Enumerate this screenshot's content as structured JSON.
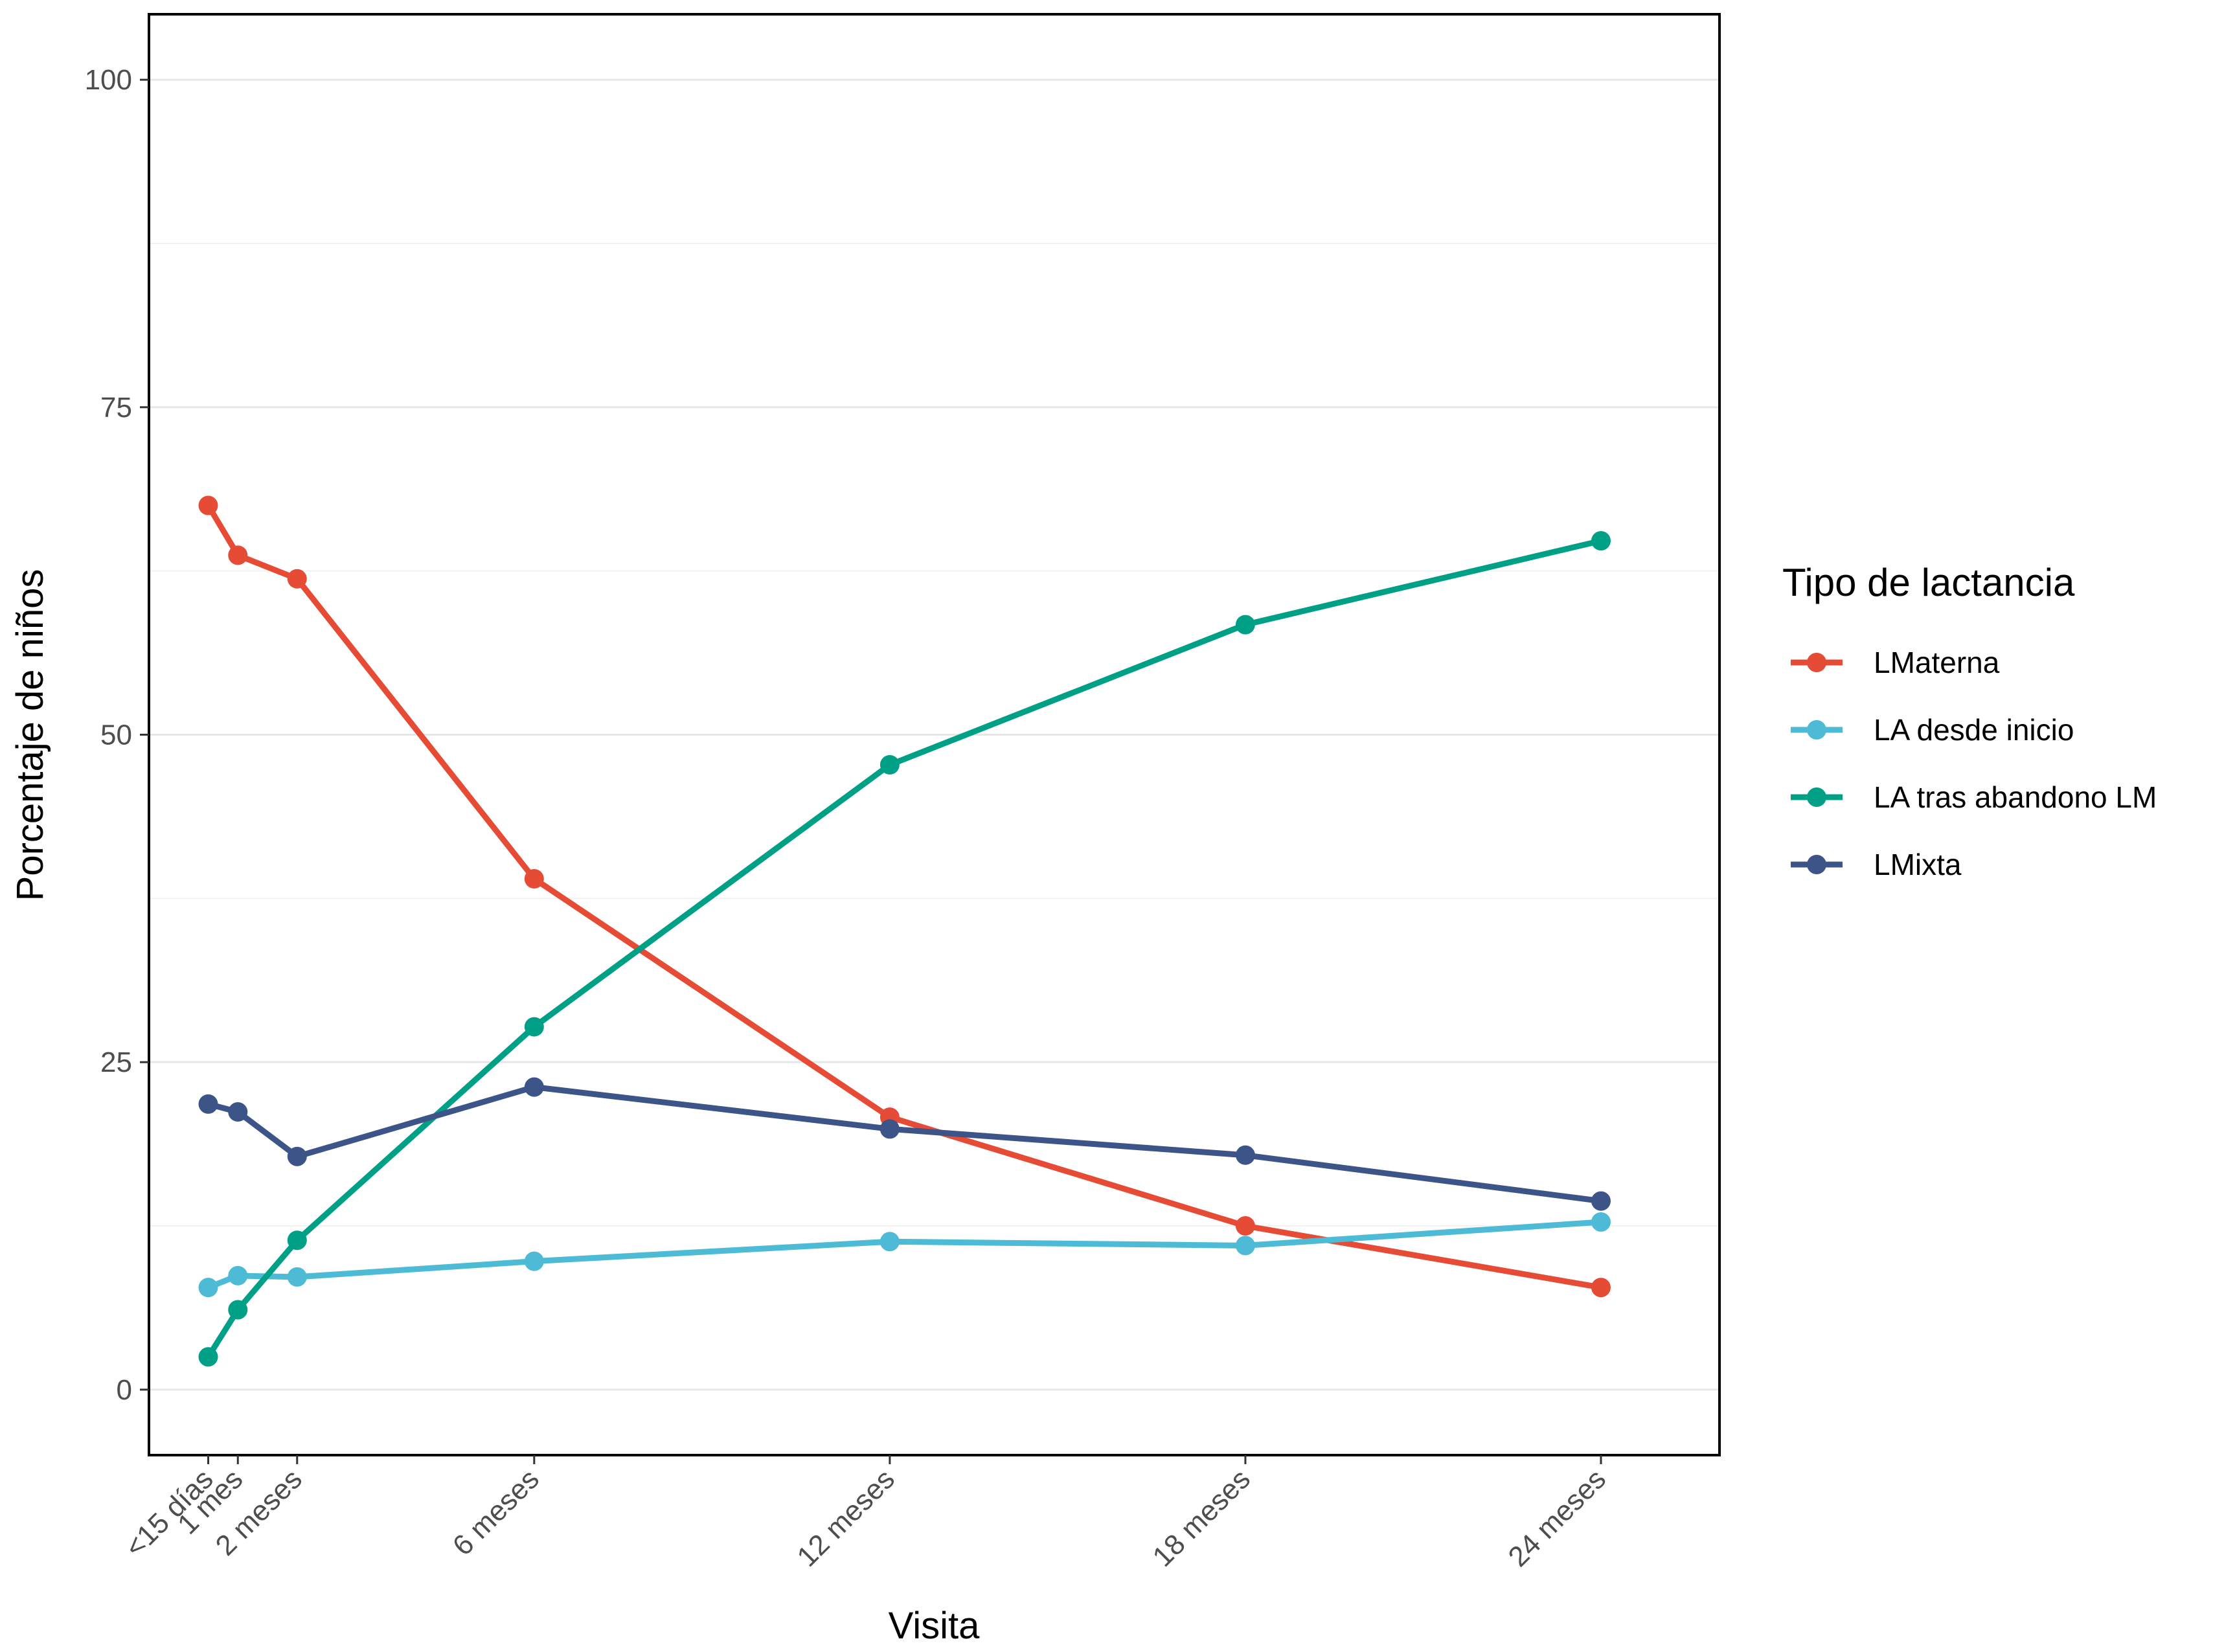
{
  "chart_data": {
    "type": "line",
    "title": "",
    "xlabel": "Visita",
    "ylabel": "Porcentaje de niños",
    "ylim": [
      -5,
      105
    ],
    "yticks": [
      0,
      25,
      50,
      75,
      100
    ],
    "grid": true,
    "legend_position": "right",
    "legend_title": "Tipo de lactancia",
    "x": [
      0.5,
      1,
      2,
      6,
      12,
      18,
      24
    ],
    "x_tick_labels": [
      "<15 días",
      "1 mes",
      "2 meses",
      "6 meses",
      "12 meses",
      "18 meses",
      "24 meses"
    ],
    "series": [
      {
        "name": "LMaterna",
        "color": "#e64b35",
        "values": [
          67.5,
          63.7,
          61.9,
          39.0,
          20.8,
          12.5,
          7.8
        ]
      },
      {
        "name": "LA desde inicio",
        "color": "#4dbbd5",
        "values": [
          7.8,
          8.7,
          8.6,
          9.8,
          11.3,
          11.0,
          12.8
        ]
      },
      {
        "name": "LA tras abandono LM",
        "color": "#00a087",
        "values": [
          2.5,
          6.1,
          11.4,
          27.7,
          47.7,
          58.4,
          64.8
        ]
      },
      {
        "name": "LMixta",
        "color": "#3c5488",
        "values": [
          21.8,
          21.2,
          17.8,
          23.1,
          19.9,
          17.9,
          14.4
        ]
      }
    ]
  }
}
